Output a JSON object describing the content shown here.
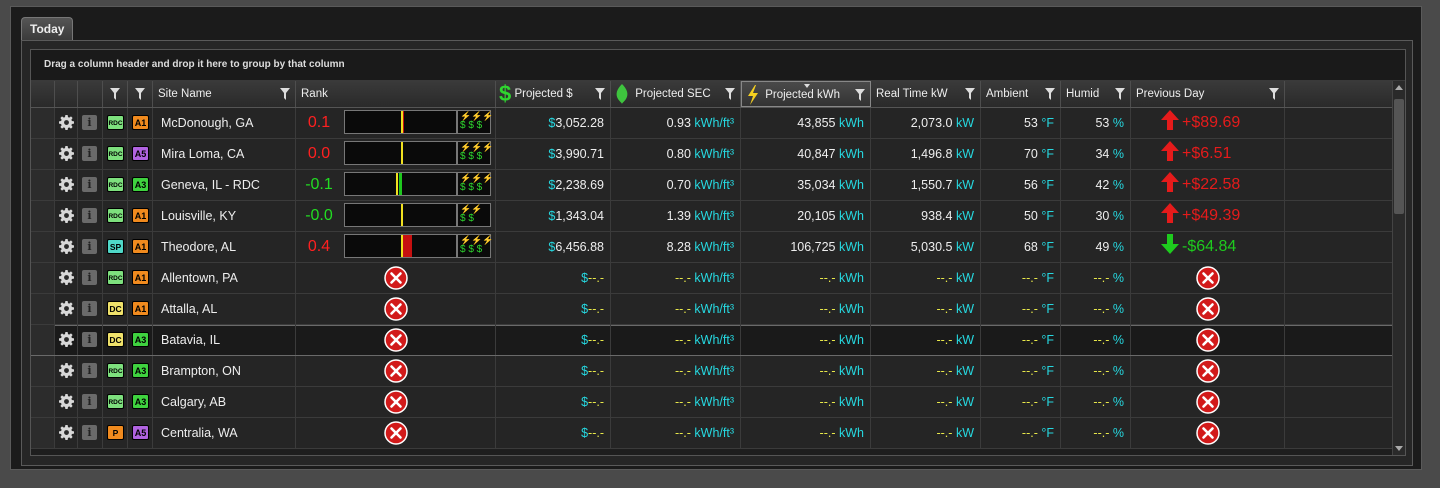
{
  "tab": {
    "label": "Today"
  },
  "grid": {
    "group_hint": "Drag a column header and drop it here to group by that column",
    "headers": {
      "site_name": "Site Name",
      "rank": "Rank",
      "projected_cost": "Projected $",
      "projected_sec": "Projected SEC",
      "projected_kwh": "Projected kWh",
      "real_time_kw": "Real Time kW",
      "ambient": "Ambient",
      "humid": "Humid",
      "previous_day": "Previous Day"
    },
    "rows": [
      {
        "type": "RDC",
        "type_color": "#7de07d",
        "grade": "A1",
        "grade_color": "#f08a1e",
        "site": "McDonough, GA",
        "rank": "0.1",
        "rank_color": "#ff2020",
        "marker_color": "#f0e020",
        "marker_pos": 0.5,
        "red_width": 0.03,
        "bolts": "⚡⚡⚡",
        "dollars": "$ $ $",
        "cost_sym": "$",
        "cost": "3,052.28",
        "sec": "0.93",
        "sec_unit": "kWh/ft³",
        "kwh": "43,855",
        "kwh_unit": "kWh",
        "kw": "2,073.0",
        "kw_unit": "kW",
        "ambient": "53",
        "ambient_unit": "°F",
        "humid": "53",
        "humid_unit": "%",
        "prev_dir": "up",
        "prev": "+$89.69"
      },
      {
        "type": "RDC",
        "type_color": "#7de07d",
        "grade": "A5",
        "grade_color": "#b063e0",
        "site": "Mira Loma, CA",
        "rank": "0.0",
        "rank_color": "#ff2020",
        "marker_color": "#f0e020",
        "marker_pos": 0.5,
        "red_width": 0,
        "bolts": "⚡⚡⚡",
        "dollars": "$ $ $",
        "cost_sym": "$",
        "cost": "3,990.71",
        "sec": "0.80",
        "sec_unit": "kWh/ft³",
        "kwh": "40,847",
        "kwh_unit": "kWh",
        "kw": "1,496.8",
        "kw_unit": "kW",
        "ambient": "70",
        "ambient_unit": "°F",
        "humid": "34",
        "humid_unit": "%",
        "prev_dir": "up",
        "prev": "+$6.51"
      },
      {
        "type": "RDC",
        "type_color": "#7de07d",
        "grade": "A3",
        "grade_color": "#3fd23f",
        "site": "Geneva, IL - RDC",
        "rank": "-0.1",
        "rank_color": "#22dd22",
        "marker_color": "#f0e020",
        "marker_pos": 0.46,
        "red_width": 0,
        "green": true,
        "bolts": "⚡⚡⚡",
        "dollars": "$ $ $",
        "cost_sym": "$",
        "cost": "2,238.69",
        "sec": "0.70",
        "sec_unit": "kWh/ft³",
        "kwh": "35,034",
        "kwh_unit": "kWh",
        "kw": "1,550.7",
        "kw_unit": "kW",
        "ambient": "56",
        "ambient_unit": "°F",
        "humid": "42",
        "humid_unit": "%",
        "prev_dir": "up",
        "prev": "+$22.58"
      },
      {
        "type": "RDC",
        "type_color": "#7de07d",
        "grade": "A1",
        "grade_color": "#f08a1e",
        "site": "Louisville, KY",
        "rank": "-0.0",
        "rank_color": "#22dd22",
        "marker_color": "#f0e020",
        "marker_pos": 0.5,
        "red_width": 0,
        "bolts": "⚡⚡",
        "dollars": "$ $",
        "cost_sym": "$",
        "cost": "1,343.04",
        "sec": "1.39",
        "sec_unit": "kWh/ft³",
        "kwh": "20,105",
        "kwh_unit": "kWh",
        "kw": "938.4",
        "kw_unit": "kW",
        "ambient": "50",
        "ambient_unit": "°F",
        "humid": "30",
        "humid_unit": "%",
        "prev_dir": "up",
        "prev": "+$49.39"
      },
      {
        "type": "SP",
        "type_color": "#4fd8c8",
        "grade": "A1",
        "grade_color": "#f08a1e",
        "site": "Theodore, AL",
        "rank": "0.4",
        "rank_color": "#ff2020",
        "marker_color": "#f0e020",
        "marker_pos": 0.5,
        "red_width": 0.1,
        "bolts": "⚡⚡⚡",
        "dollars": "$ $ $",
        "cost_sym": "$",
        "cost": "6,456.88",
        "sec": "8.28",
        "sec_unit": "kWh/ft³",
        "kwh": "106,725",
        "kwh_unit": "kWh",
        "kw": "5,030.5",
        "kw_unit": "kW",
        "ambient": "68",
        "ambient_unit": "°F",
        "humid": "49",
        "humid_unit": "%",
        "prev_dir": "down",
        "prev": "-$64.84"
      },
      {
        "type": "RDC",
        "type_color": "#7de07d",
        "grade": "A1",
        "grade_color": "#f08a1e",
        "site": "Allentown, PA",
        "na": true
      },
      {
        "type": "DC",
        "type_color": "#f0e26a",
        "grade": "A1",
        "grade_color": "#f08a1e",
        "site": "Attalla, AL",
        "na": true
      },
      {
        "type": "DC",
        "type_color": "#f0e26a",
        "grade": "A3",
        "grade_color": "#3fd23f",
        "site": "Batavia, IL",
        "na": true,
        "selected": true
      },
      {
        "type": "RDC",
        "type_color": "#7de07d",
        "grade": "A3",
        "grade_color": "#3fd23f",
        "site": "Brampton, ON",
        "na": true
      },
      {
        "type": "RDC",
        "type_color": "#7de07d",
        "grade": "A3",
        "grade_color": "#3fd23f",
        "site": "Calgary, AB",
        "na": true
      },
      {
        "type": "P",
        "type_color": "#f08a1e",
        "grade": "A5",
        "grade_color": "#b063e0",
        "site": "Centralia, WA",
        "na": true
      }
    ],
    "na_text": {
      "cost_sym": "$",
      "cost": "--.-",
      "sec": "--.-",
      "sec_unit": "kWh/ft³",
      "kwh": "--.-",
      "kwh_unit": "kWh",
      "kw": "--.-",
      "kw_unit": "kW",
      "ambient": "--.-",
      "ambient_unit": "°F",
      "humid": "--.-",
      "humid_unit": "%"
    }
  },
  "colors": {
    "up": "#e51b1b",
    "down": "#1ecb1e",
    "unit": "#26d8e0",
    "dash": "#e8e84a"
  }
}
